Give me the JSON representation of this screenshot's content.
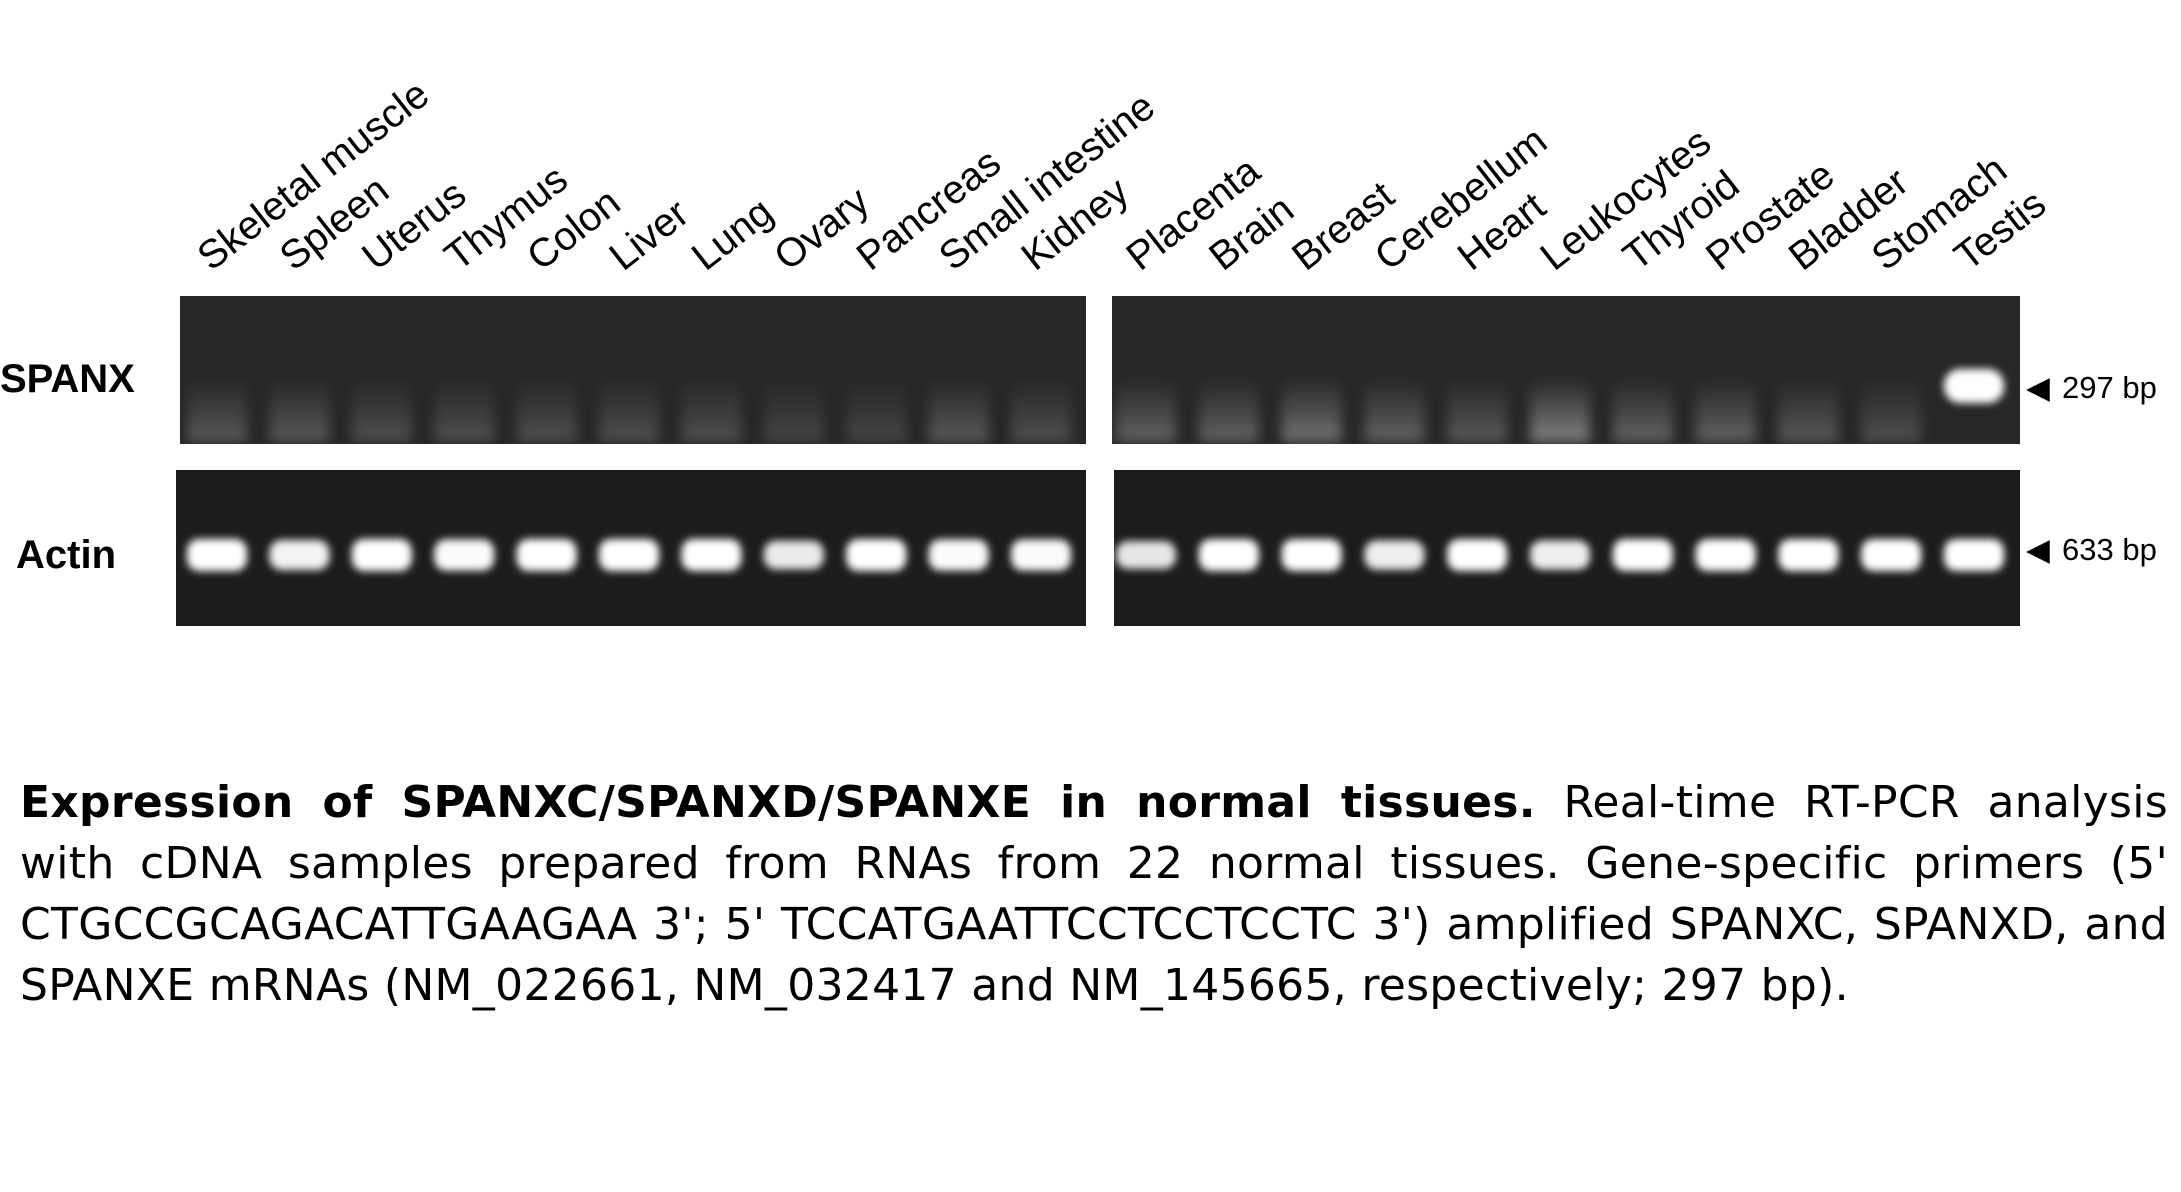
{
  "figure": {
    "lanes": {
      "left": [
        "Skeletal muscle",
        "Spleen",
        "Uterus",
        "Thymus",
        "Colon",
        "Liver",
        "Lung",
        "Ovary",
        "Pancreas",
        "Small intestine",
        "Kidney"
      ],
      "right": [
        "Placenta",
        "Brain",
        "Breast",
        "Cerebellum",
        "Heart",
        "Leukocytes",
        "Thyroid",
        "Prostate",
        "Bladder",
        "Stomach",
        "Testis"
      ]
    },
    "rows": [
      {
        "label": "SPANX",
        "marker": "297 bp",
        "band_intensity": {
          "left": [
            0.1,
            0.1,
            0.08,
            0.08,
            0.08,
            0.08,
            0.08,
            0.06,
            0.06,
            0.1,
            0.08
          ],
          "right": [
            0.12,
            0.12,
            0.15,
            0.12,
            0.1,
            0.18,
            0.12,
            0.12,
            0.1,
            0.08,
            1.0
          ]
        }
      },
      {
        "label": "Actin",
        "marker": "633 bp",
        "band_intensity": {
          "left": [
            1.0,
            0.85,
            1.0,
            0.95,
            1.0,
            1.0,
            1.0,
            0.75,
            1.0,
            0.95,
            0.95
          ],
          "right": [
            0.7,
            1.0,
            1.0,
            0.8,
            1.0,
            0.8,
            1.0,
            1.0,
            1.0,
            1.0,
            1.0
          ]
        }
      }
    ]
  },
  "caption": {
    "title": "Expression of SPANXC/SPANXD/SPANXE in normal tissues.",
    "body": " Real-time RT-PCR analysis with cDNA samples prepared from RNAs from 22 normal tissues. Gene-specific primers (5' CTGCCGCAGACATTGAAGAA 3'; 5' TCCATGAATTCCTCCTCCTC 3') amplified SPANXC, SPANXD, and SPANXE mRNAs (NM_022661, NM_032417 and NM_145665, respectively; 297 bp)."
  }
}
